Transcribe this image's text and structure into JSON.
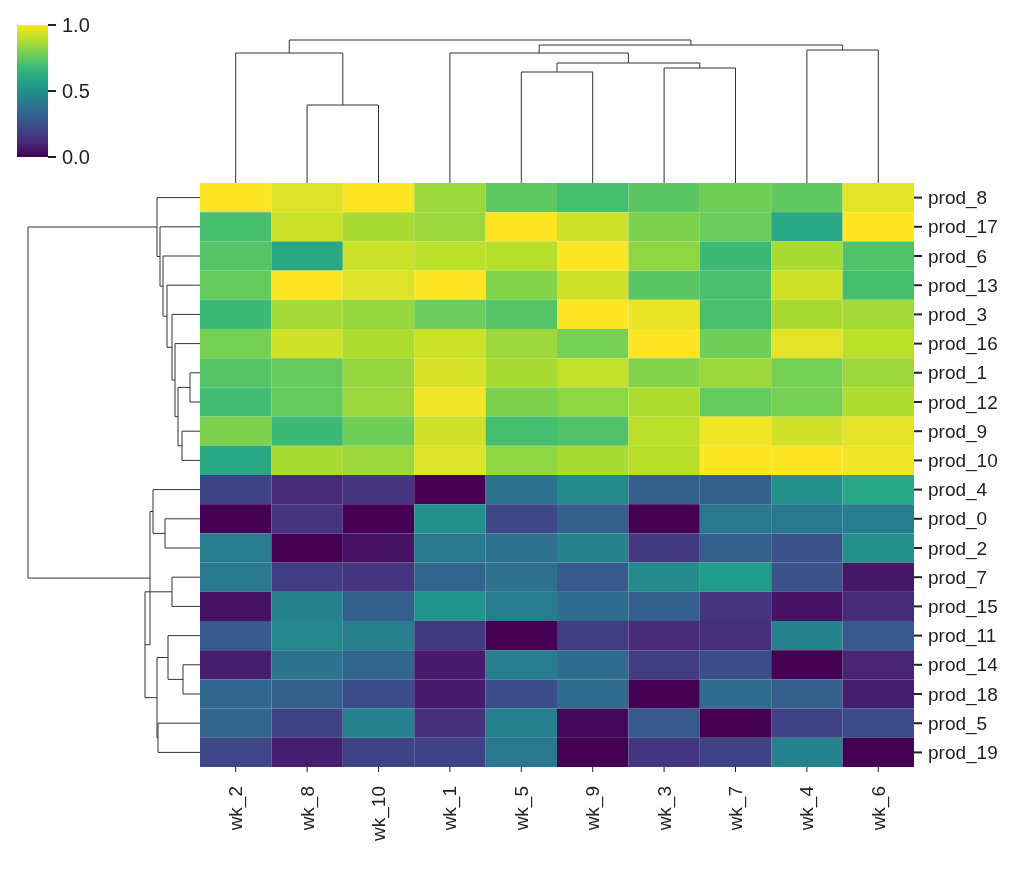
{
  "chart_data": {
    "type": "heatmap",
    "categories": [
      "wk_2",
      "wk_8",
      "wk_10",
      "wk_1",
      "wk_5",
      "wk_9",
      "wk_3",
      "wk_7",
      "wk_4",
      "wk_6"
    ],
    "y_categories": [
      "prod_8",
      "prod_17",
      "prod_6",
      "prod_13",
      "prod_3",
      "prod_16",
      "prod_1",
      "prod_12",
      "prod_9",
      "prod_10",
      "prod_4",
      "prod_0",
      "prod_2",
      "prod_7",
      "prod_15",
      "prod_11",
      "prod_14",
      "prod_18",
      "prod_5",
      "prod_19"
    ],
    "cells": [
      [
        1.0,
        0.95,
        1.0,
        0.85,
        0.75,
        0.7,
        0.74,
        0.78,
        0.75,
        0.96
      ],
      [
        0.7,
        0.92,
        0.87,
        0.85,
        1.0,
        0.93,
        0.8,
        0.77,
        0.6,
        1.0
      ],
      [
        0.73,
        0.6,
        0.92,
        0.9,
        0.89,
        1.0,
        0.83,
        0.68,
        0.87,
        0.72
      ],
      [
        0.76,
        1.0,
        0.95,
        1.0,
        0.81,
        0.93,
        0.74,
        0.71,
        0.93,
        0.7
      ],
      [
        0.68,
        0.86,
        0.84,
        0.77,
        0.73,
        1.0,
        0.97,
        0.71,
        0.87,
        0.86
      ],
      [
        0.79,
        0.93,
        0.88,
        0.92,
        0.85,
        0.79,
        1.0,
        0.78,
        0.96,
        0.9
      ],
      [
        0.73,
        0.76,
        0.84,
        0.94,
        0.87,
        0.91,
        0.81,
        0.85,
        0.79,
        0.85
      ],
      [
        0.69,
        0.76,
        0.85,
        0.98,
        0.8,
        0.83,
        0.88,
        0.76,
        0.79,
        0.88
      ],
      [
        0.8,
        0.68,
        0.78,
        0.93,
        0.7,
        0.72,
        0.9,
        0.98,
        0.93,
        0.96
      ],
      [
        0.6,
        0.87,
        0.85,
        0.95,
        0.83,
        0.87,
        0.89,
        1.0,
        1.0,
        0.98
      ],
      [
        0.2,
        0.12,
        0.15,
        0.0,
        0.38,
        0.48,
        0.3,
        0.3,
        0.5,
        0.6
      ],
      [
        0.0,
        0.15,
        0.0,
        0.5,
        0.22,
        0.3,
        0.0,
        0.4,
        0.4,
        0.42
      ],
      [
        0.42,
        0.0,
        0.05,
        0.4,
        0.37,
        0.45,
        0.17,
        0.3,
        0.25,
        0.5
      ],
      [
        0.4,
        0.18,
        0.15,
        0.32,
        0.37,
        0.28,
        0.48,
        0.55,
        0.25,
        0.06
      ],
      [
        0.05,
        0.45,
        0.3,
        0.52,
        0.42,
        0.35,
        0.3,
        0.15,
        0.05,
        0.12
      ],
      [
        0.28,
        0.47,
        0.43,
        0.17,
        0.0,
        0.18,
        0.12,
        0.13,
        0.45,
        0.28
      ],
      [
        0.08,
        0.38,
        0.33,
        0.07,
        0.42,
        0.35,
        0.18,
        0.24,
        0.0,
        0.1
      ],
      [
        0.33,
        0.3,
        0.24,
        0.07,
        0.24,
        0.35,
        0.0,
        0.35,
        0.3,
        0.08
      ],
      [
        0.32,
        0.2,
        0.44,
        0.14,
        0.43,
        0.02,
        0.28,
        0.0,
        0.2,
        0.23
      ],
      [
        0.22,
        0.08,
        0.2,
        0.2,
        0.4,
        0.0,
        0.16,
        0.2,
        0.45,
        0.0
      ]
    ],
    "clim": [
      0,
      1
    ],
    "cticks": [
      {
        "value": 0,
        "label": "0.0"
      },
      {
        "value": 0.5,
        "label": "0.5"
      },
      {
        "value": 1,
        "label": "1.0"
      }
    ]
  }
}
